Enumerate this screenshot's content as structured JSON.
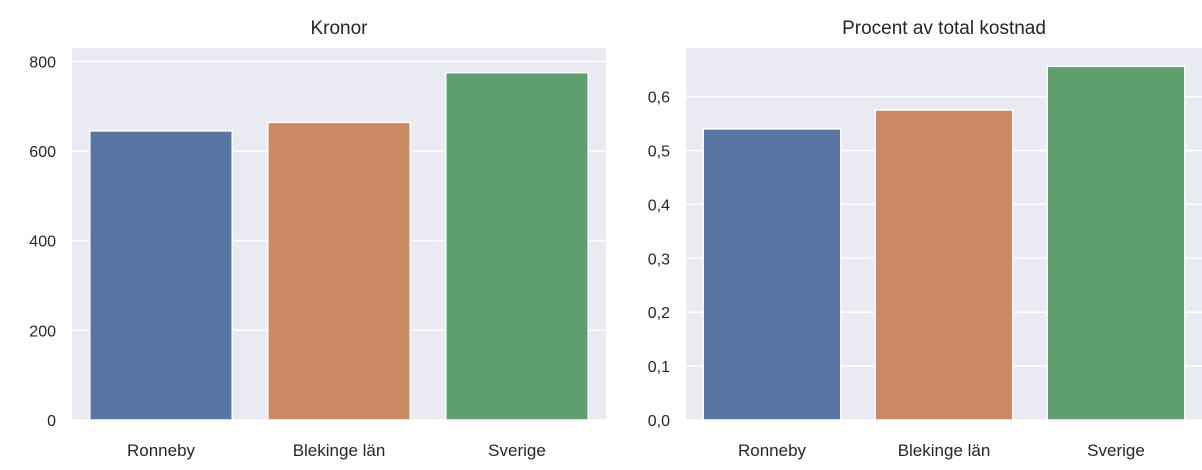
{
  "chart_data": [
    {
      "type": "bar",
      "title": "Kronor",
      "xlabel": "",
      "ylabel": "",
      "categories": [
        "Ronneby",
        "Blekinge län",
        "Sverige"
      ],
      "values": [
        645,
        664,
        775
      ],
      "colors": [
        "#5975a4",
        "#cc8963",
        "#5f9e6e"
      ],
      "ylim": [
        0,
        830
      ],
      "yticks": [
        0,
        200,
        400,
        600,
        800
      ],
      "ytick_labels": [
        "0",
        "200",
        "400",
        "600",
        "800"
      ],
      "grid": true,
      "background": "#eaeaf2"
    },
    {
      "type": "bar",
      "title": "Procent av total kostnad",
      "xlabel": "",
      "ylabel": "",
      "categories": [
        "Ronneby",
        "Blekinge län",
        "Sverige"
      ],
      "values": [
        0.54,
        0.575,
        0.656
      ],
      "colors": [
        "#5975a4",
        "#cc8963",
        "#5f9e6e"
      ],
      "ylim": [
        0,
        0.69
      ],
      "yticks": [
        0,
        0.1,
        0.2,
        0.3,
        0.4,
        0.5,
        0.6
      ],
      "ytick_labels": [
        "0,0",
        "0,1",
        "0,2",
        "0,3",
        "0,4",
        "0,5",
        "0,6"
      ],
      "grid": true,
      "background": "#eaeaf2"
    }
  ]
}
